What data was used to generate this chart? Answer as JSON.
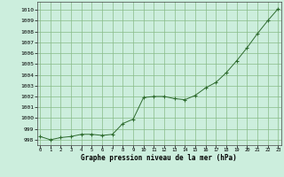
{
  "x": [
    0,
    1,
    2,
    3,
    4,
    5,
    6,
    7,
    8,
    9,
    10,
    11,
    12,
    13,
    14,
    15,
    16,
    17,
    18,
    19,
    20,
    21,
    22,
    23
  ],
  "y": [
    998.3,
    998.0,
    998.2,
    998.3,
    998.5,
    998.5,
    998.4,
    998.5,
    999.5,
    999.9,
    1001.9,
    1002.0,
    1002.0,
    1001.8,
    1001.7,
    1002.1,
    1002.8,
    1003.3,
    1004.2,
    1005.3,
    1006.5,
    1007.8,
    1009.0,
    1010.1
  ],
  "line_color": "#2d6a2d",
  "marker_color": "#2d6a2d",
  "bg_color": "#cceedd",
  "grid_color": "#88bb88",
  "xlabel": "Graphe pression niveau de la mer (hPa)",
  "ylim": [
    997.5,
    1010.75
  ],
  "yticks": [
    998,
    999,
    1000,
    1001,
    1002,
    1003,
    1004,
    1005,
    1006,
    1007,
    1008,
    1009,
    1010
  ],
  "xticks": [
    0,
    1,
    2,
    3,
    4,
    5,
    6,
    7,
    8,
    9,
    10,
    11,
    12,
    13,
    14,
    15,
    16,
    17,
    18,
    19,
    20,
    21,
    22,
    23
  ],
  "xtick_labels": [
    "0",
    "1",
    "2",
    "3",
    "4",
    "5",
    "6",
    "7",
    "8",
    "9",
    "10",
    "11",
    "12",
    "13",
    "14",
    "15",
    "16",
    "17",
    "18",
    "19",
    "20",
    "21",
    "22",
    "23"
  ],
  "ytick_labels": [
    "998",
    "999",
    "1000",
    "1001",
    "1002",
    "1003",
    "1004",
    "1005",
    "1006",
    "1007",
    "1008",
    "1009",
    "1010"
  ]
}
